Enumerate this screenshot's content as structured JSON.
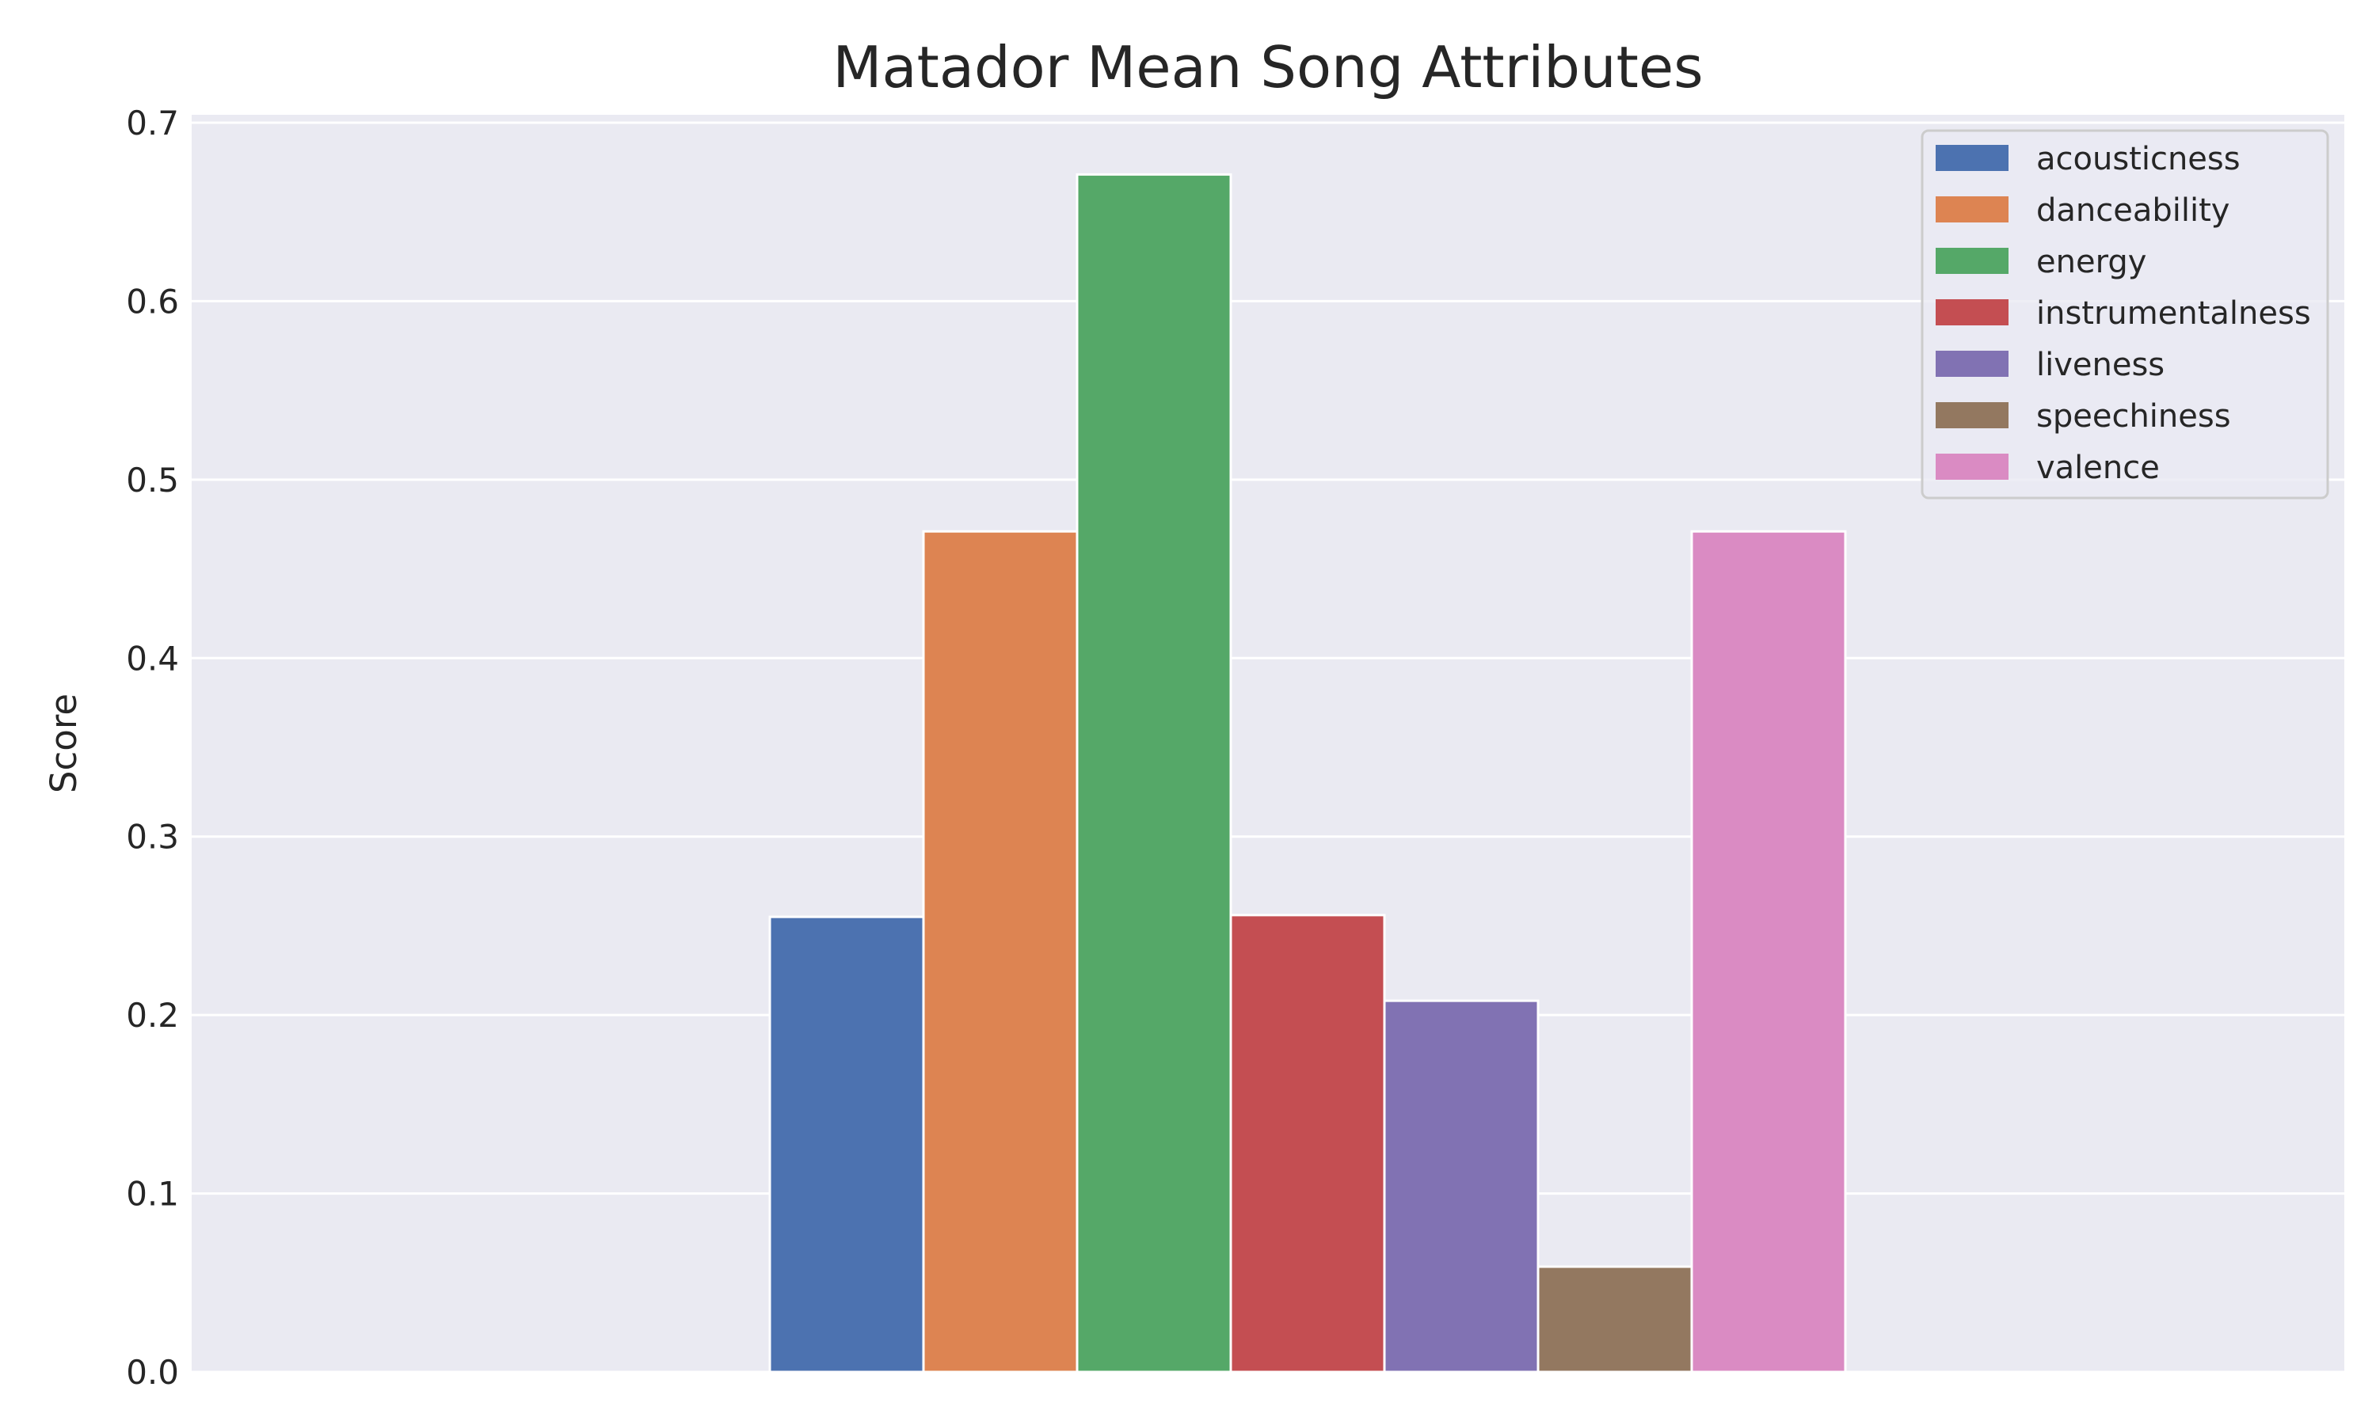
{
  "chart_data": {
    "type": "bar",
    "title": "Matador Mean Song Attributes",
    "xlabel": "",
    "ylabel": "Score",
    "ylim": [
      0,
      0.7
    ],
    "yticks": [
      "0.0",
      "0.1",
      "0.2",
      "0.3",
      "0.4",
      "0.5",
      "0.6",
      "0.7"
    ],
    "grid": true,
    "legend_position": "top-right",
    "background_color": "#eaeaf2",
    "series": [
      {
        "name": "acousticness",
        "value": 0.255,
        "color": "#4c72b0"
      },
      {
        "name": "danceability",
        "value": 0.471,
        "color": "#dd8452"
      },
      {
        "name": "energy",
        "value": 0.671,
        "color": "#55a868"
      },
      {
        "name": "instrumentalness",
        "value": 0.256,
        "color": "#c44e52"
      },
      {
        "name": "liveness",
        "value": 0.208,
        "color": "#8172b3"
      },
      {
        "name": "speechiness",
        "value": 0.059,
        "color": "#937860"
      },
      {
        "name": "valence",
        "value": 0.471,
        "color": "#da8bc3"
      }
    ]
  }
}
